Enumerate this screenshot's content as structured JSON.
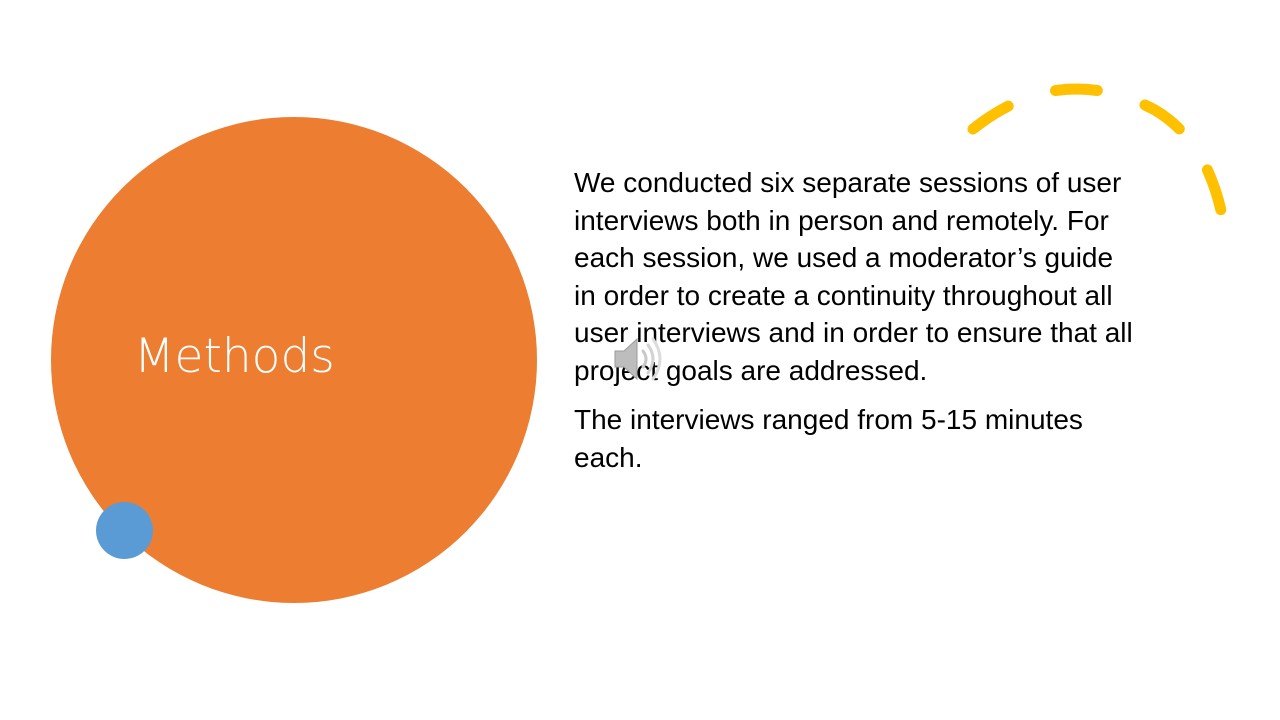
{
  "slide": {
    "title": "Methods",
    "paragraphs": [
      "We conducted six separate sessions of user interviews both in person and remotely. For each session, we used a moderator’s guide in order to create a continuity throughout all user interviews and in order to ensure that all project goals are addressed.",
      "The interviews ranged from 5-15 minutes each."
    ]
  },
  "colors": {
    "orange": "#ED7D31",
    "blue": "#5B9BD5",
    "yellow": "#FFC000",
    "title_text": "#FFFFFF",
    "body_text": "#000000"
  },
  "icons": {
    "audio": "speaker-icon",
    "arc": "dashed-arc"
  }
}
